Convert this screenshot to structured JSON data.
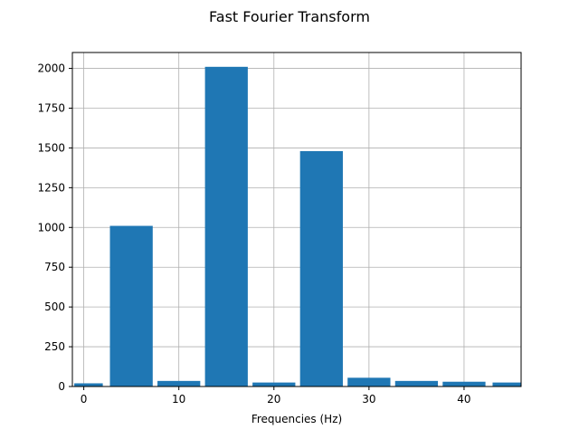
{
  "chart_data": {
    "type": "bar",
    "title": "Fast Fourier Transform",
    "xlabel": "Frequencies (Hz)",
    "ylabel": "",
    "xlim": [
      -1.2,
      46
    ],
    "ylim": [
      0,
      2100
    ],
    "xticks": [
      0,
      10,
      20,
      30,
      40
    ],
    "yticks": [
      0,
      250,
      500,
      750,
      1000,
      1250,
      1500,
      1750,
      2000
    ],
    "grid": true,
    "bar_color": "#1f77b4",
    "bars": [
      {
        "x": 0.5,
        "width": 3.0,
        "value": 20
      },
      {
        "x": 5.0,
        "width": 4.5,
        "value": 1010
      },
      {
        "x": 10.0,
        "width": 4.5,
        "value": 35
      },
      {
        "x": 15.0,
        "width": 4.5,
        "value": 2010
      },
      {
        "x": 20.0,
        "width": 4.5,
        "value": 25
      },
      {
        "x": 25.0,
        "width": 4.5,
        "value": 1480
      },
      {
        "x": 30.0,
        "width": 4.5,
        "value": 55
      },
      {
        "x": 35.0,
        "width": 4.5,
        "value": 35
      },
      {
        "x": 40.0,
        "width": 4.5,
        "value": 30
      },
      {
        "x": 44.5,
        "width": 3.0,
        "value": 25
      }
    ]
  }
}
